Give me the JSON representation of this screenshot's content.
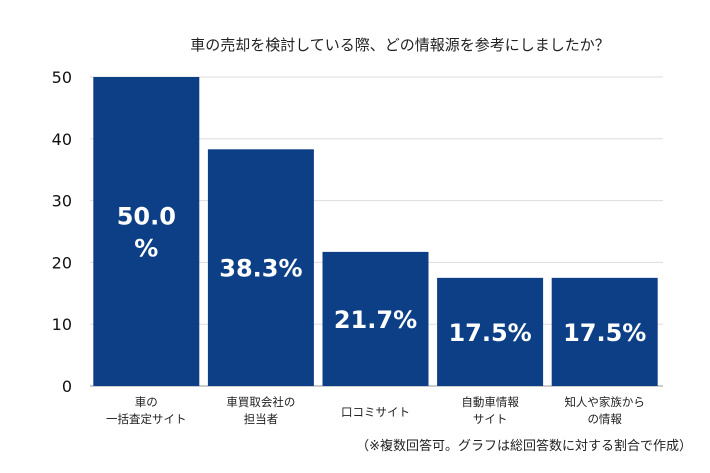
{
  "chart_data": {
    "type": "bar",
    "title": "車の売却を検討している際、どの情報源を参考にしましたか？",
    "categories": [
      [
        "車の",
        "一括査定サイト"
      ],
      [
        "車買取会社の",
        "担当者"
      ],
      [
        "口コミサイト"
      ],
      [
        "自動車情報",
        "サイト"
      ],
      [
        "知人や家族から",
        "の情報"
      ]
    ],
    "values": [
      50.0,
      38.3,
      21.7,
      17.5,
      17.5
    ],
    "data_labels": [
      [
        "50.0",
        "%"
      ],
      [
        "38.3%"
      ],
      [
        "21.7%"
      ],
      [
        "17.5%"
      ],
      [
        "17.5%"
      ]
    ],
    "yticks": [
      "0",
      "10",
      "20",
      "30",
      "40",
      "50"
    ],
    "ylim": [
      0,
      50
    ],
    "grid": true,
    "xlabel": "",
    "ylabel": "",
    "note": "（※複数回答可。グラフは総回答数に対する割合で作成）",
    "bar_color": "#0d3f87",
    "grid_color": "#dddddd"
  }
}
